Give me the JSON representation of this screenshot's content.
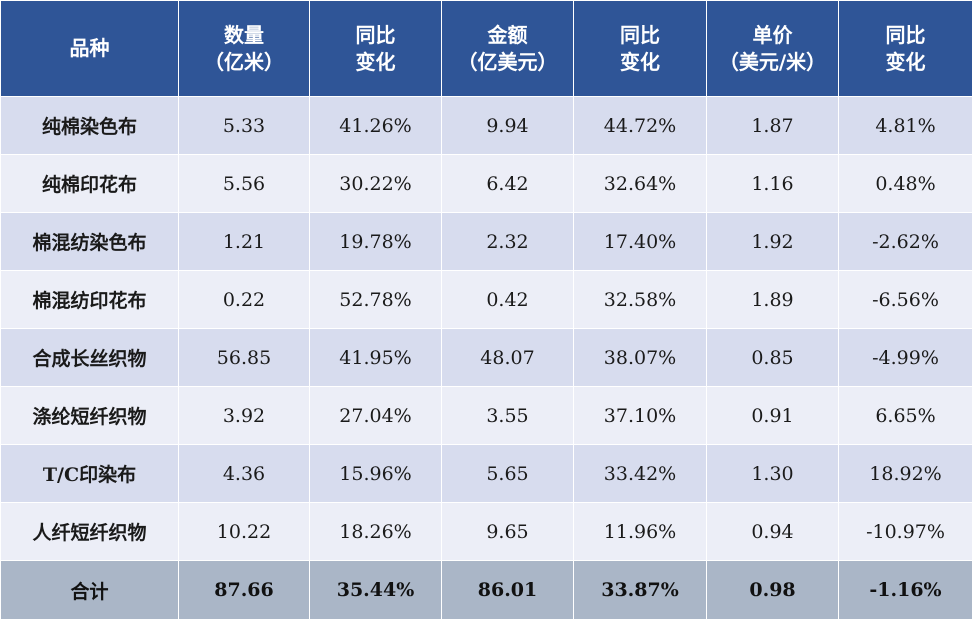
{
  "header": {
    "variety": "品种",
    "qty_l1": "数量",
    "qty_l2": "（亿米）",
    "yoy1_l1": "同比",
    "yoy1_l2": "变化",
    "amt_l1": "金额",
    "amt_l2": "（亿美元）",
    "yoy2_l1": "同比",
    "yoy2_l2": "变化",
    "price_l1": "单价",
    "price_l2": "（美元/米）",
    "yoy3_l1": "同比",
    "yoy3_l2": "变化"
  },
  "rows": [
    [
      "纯棉染色布",
      "5.33",
      "41.26%",
      "9.94",
      "44.72%",
      "1.87",
      "4.81%"
    ],
    [
      "纯棉印花布",
      "5.56",
      "30.22%",
      "6.42",
      "32.64%",
      "1.16",
      "0.48%"
    ],
    [
      "棉混纺染色布",
      "1.21",
      "19.78%",
      "2.32",
      "17.40%",
      "1.92",
      "-2.62%"
    ],
    [
      "棉混纺印花布",
      "0.22",
      "52.78%",
      "0.42",
      "32.58%",
      "1.89",
      "-6.56%"
    ],
    [
      "合成长丝织物",
      "56.85",
      "41.95%",
      "48.07",
      "38.07%",
      "0.85",
      "-4.99%"
    ],
    [
      "涤纶短纤织物",
      "3.92",
      "27.04%",
      "3.55",
      "37.10%",
      "0.91",
      "6.65%"
    ],
    [
      "T/C印染布",
      "4.36",
      "15.96%",
      "5.65",
      "33.42%",
      "1.30",
      "18.92%"
    ],
    [
      "人纤短纤织物",
      "10.22",
      "18.26%",
      "9.65",
      "11.96%",
      "0.94",
      "-10.97%"
    ]
  ],
  "total": [
    "合计",
    "87.66",
    "35.44%",
    "86.01",
    "33.87%",
    "0.98",
    "-1.16%"
  ]
}
